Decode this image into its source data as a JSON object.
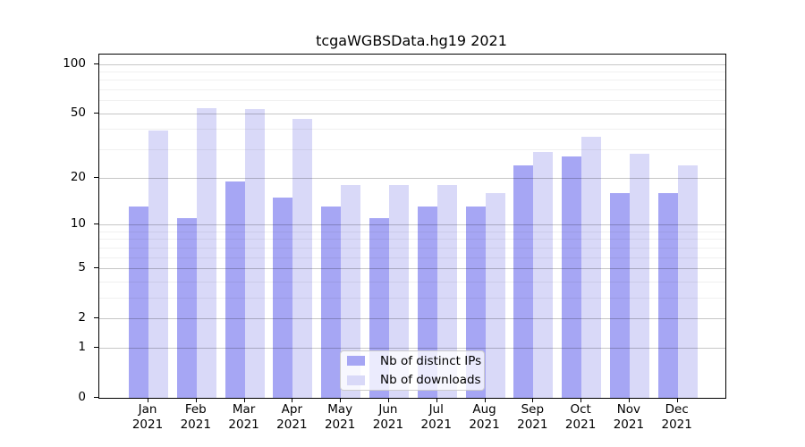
{
  "chart_data": {
    "type": "bar",
    "title": "tcgaWGBSData.hg19 2021",
    "categories": [
      "Jan 2021",
      "Feb 2021",
      "Mar 2021",
      "Apr 2021",
      "May 2021",
      "Jun 2021",
      "Jul 2021",
      "Aug 2021",
      "Sep 2021",
      "Oct 2021",
      "Nov 2021",
      "Dec 2021"
    ],
    "series": [
      {
        "name": "Nb of distinct IPs",
        "color": "#a6a6f4",
        "values": [
          13,
          11,
          19,
          15,
          13,
          11,
          13,
          13,
          24,
          27,
          16,
          16
        ]
      },
      {
        "name": "Nb of downloads",
        "color": "#d9d9f8",
        "values": [
          39,
          54,
          53,
          46,
          18,
          18,
          18,
          16,
          29,
          36,
          28,
          24
        ]
      }
    ],
    "xlabel": "",
    "ylabel": "",
    "yscale": "log1p",
    "ylim": [
      0,
      114
    ],
    "yticks": [
      100,
      50,
      20,
      10,
      5,
      2,
      1,
      0
    ],
    "ygrid_minor": [
      3,
      4,
      6,
      7,
      8,
      9,
      30,
      40,
      60,
      70,
      80,
      90
    ],
    "grid": "on",
    "legend_position": "lower center"
  }
}
